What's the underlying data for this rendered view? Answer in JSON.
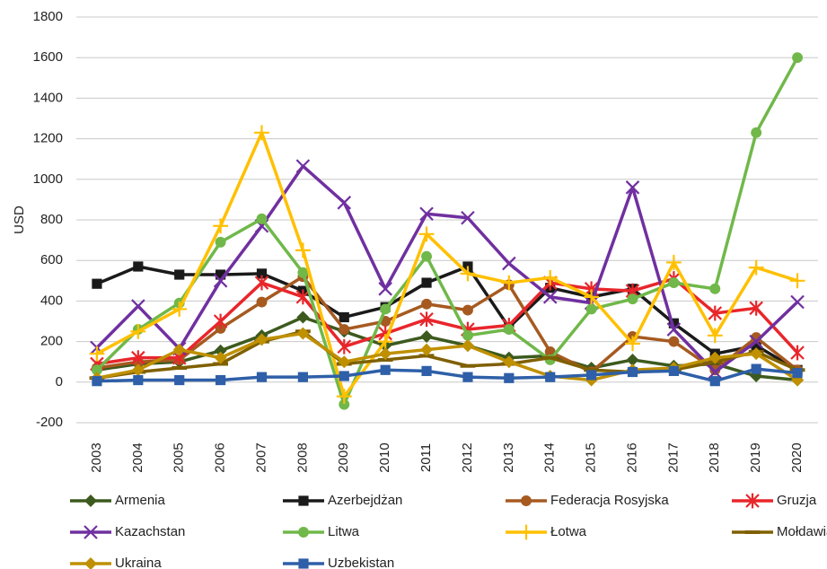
{
  "chart_data": {
    "type": "line",
    "y_label": "USD",
    "categories": [
      "2003",
      "2004",
      "2005",
      "2006",
      "2007",
      "2008",
      "2009",
      "2010",
      "2011",
      "2012",
      "2013",
      "2014",
      "2015",
      "2016",
      "2017",
      "2018",
      "2019",
      "2020"
    ],
    "ylim": [
      -200,
      1800
    ],
    "yticks": [
      -200,
      0,
      200,
      400,
      600,
      800,
      1000,
      1200,
      1400,
      1600,
      1800
    ],
    "grid": true,
    "legend": "bottom",
    "series": [
      {
        "name": "Armenia",
        "color": "#3d5a1e",
        "marker": "diamond",
        "values": [
          60,
          90,
          100,
          155,
          230,
          320,
          250,
          180,
          225,
          180,
          120,
          130,
          70,
          110,
          80,
          90,
          30,
          10
        ]
      },
      {
        "name": "Azerbejdżan",
        "color": "#1a1a1a",
        "marker": "square",
        "values": [
          485,
          570,
          530,
          530,
          535,
          450,
          320,
          370,
          490,
          570,
          270,
          465,
          420,
          460,
          290,
          140,
          180,
          60
        ]
      },
      {
        "name": "Federacja Rosyjska",
        "color": "#a65a20",
        "marker": "circle",
        "values": [
          70,
          100,
          110,
          265,
          395,
          520,
          260,
          300,
          385,
          355,
          480,
          150,
          50,
          225,
          200,
          60,
          220,
          60
        ]
      },
      {
        "name": "Gruzja",
        "color": "#e8262b",
        "marker": "asterisk",
        "values": [
          90,
          120,
          120,
          300,
          490,
          420,
          175,
          240,
          310,
          260,
          280,
          490,
          460,
          450,
          510,
          340,
          365,
          145
        ]
      },
      {
        "name": "Kazachstan",
        "color": "#7030a0",
        "marker": "x",
        "values": [
          170,
          375,
          165,
          500,
          770,
          1065,
          885,
          460,
          830,
          810,
          585,
          420,
          390,
          960,
          260,
          50,
          200,
          395
        ]
      },
      {
        "name": "Litwa",
        "color": "#70b84a",
        "marker": "circle",
        "values": [
          60,
          260,
          390,
          690,
          805,
          540,
          -110,
          360,
          620,
          230,
          260,
          110,
          360,
          410,
          490,
          460,
          1230,
          1600
        ]
      },
      {
        "name": "Łotwa",
        "color": "#ffc000",
        "marker": "plus",
        "values": [
          140,
          250,
          360,
          770,
          1230,
          650,
          -70,
          200,
          730,
          535,
          490,
          515,
          420,
          190,
          590,
          230,
          565,
          500
        ]
      },
      {
        "name": "Mołdawia",
        "color": "#7f6000",
        "marker": "dash",
        "values": [
          20,
          50,
          70,
          90,
          200,
          250,
          90,
          110,
          130,
          80,
          90,
          120,
          60,
          50,
          60,
          100,
          150,
          60
        ]
      },
      {
        "name": "Ukraina",
        "color": "#bf9000",
        "marker": "diamond",
        "values": [
          20,
          60,
          160,
          120,
          210,
          240,
          100,
          140,
          160,
          180,
          100,
          30,
          10,
          60,
          70,
          120,
          140,
          10
        ]
      },
      {
        "name": "Uzbekistan",
        "color": "#2e5fa8",
        "marker": "square",
        "values": [
          5,
          10,
          10,
          10,
          25,
          25,
          30,
          60,
          55,
          25,
          20,
          25,
          35,
          50,
          55,
          5,
          65,
          45
        ]
      }
    ]
  }
}
